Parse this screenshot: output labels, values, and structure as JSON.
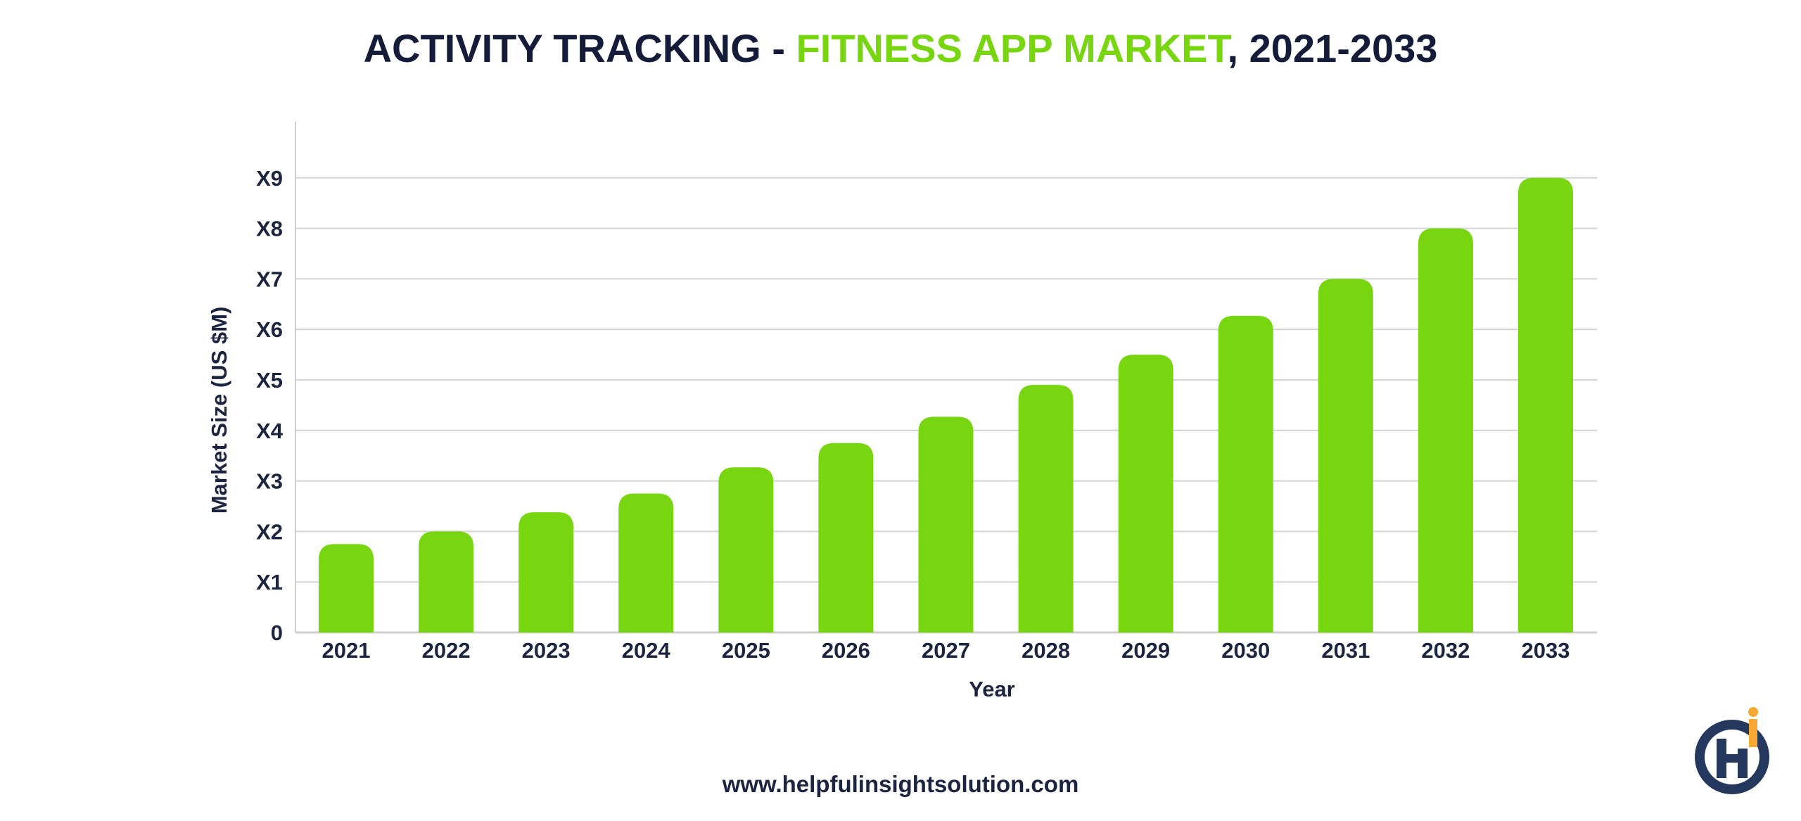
{
  "title": {
    "part1": "ACTIVITY TRACKING - ",
    "part2": "FITNESS APP MARKET",
    "part3": ", 2021-2033"
  },
  "footer": {
    "website": "www.helpfulinsightsolution.com"
  },
  "logo": {
    "icon": "helpful-insight-logo-icon"
  },
  "colors": {
    "bar": "#78d611",
    "accent": "#78d611",
    "text": "#141c3a",
    "grid": "#d4d4d4",
    "logo_blue": "#25395f",
    "logo_orange": "#f7a831"
  },
  "chart_data": {
    "type": "bar",
    "title": "ACTIVITY TRACKING - FITNESS APP MARKET, 2021-2033",
    "xlabel": "Year",
    "ylabel": "Market Size (US $M)",
    "categories": [
      "2021",
      "2022",
      "2023",
      "2024",
      "2025",
      "2026",
      "2027",
      "2028",
      "2029",
      "2030",
      "2031",
      "2032",
      "2033"
    ],
    "values": [
      1.75,
      2.0,
      2.38,
      2.75,
      3.27,
      3.75,
      4.27,
      4.9,
      5.5,
      6.27,
      7.0,
      8.0,
      9.0
    ],
    "y_tick_labels": [
      "0",
      "X1",
      "X2",
      "X3",
      "X4",
      "X5",
      "X6",
      "X7",
      "X8",
      "X9"
    ],
    "y_tick_values": [
      0,
      1,
      2,
      3,
      4,
      5,
      6,
      7,
      8,
      9
    ],
    "ylim": [
      0,
      10
    ],
    "grid": true,
    "legend": "none"
  }
}
